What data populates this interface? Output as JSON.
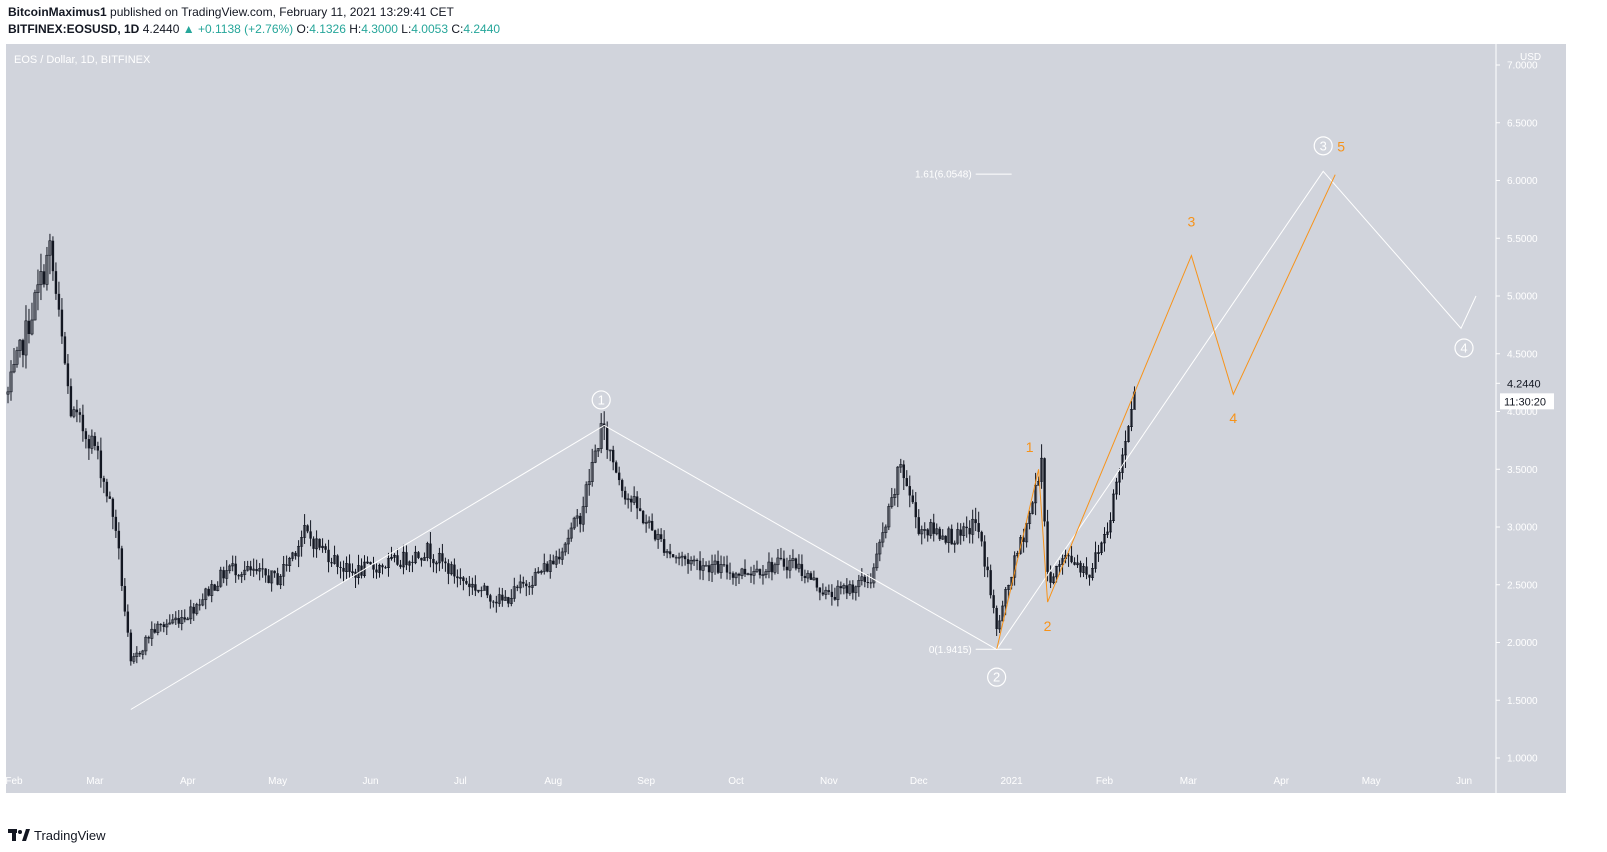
{
  "header": {
    "publisher": "BitcoinMaximus1",
    "published_text": "published on TradingView.com, February 11, 2021 13:29:41 CET",
    "symbol": "BITFINEX:EOSUSD, 1D",
    "last": "4.2440",
    "change": "+0.1138 (+2.76%)",
    "o_label": "O:",
    "o": "4.1326",
    "h_label": "H:",
    "h": "4.3000",
    "l_label": "L:",
    "l": "4.0053",
    "c_label": "C:",
    "c": "4.2440"
  },
  "chart_title": "EOS / Dollar, 1D, BITFINEX",
  "footer": {
    "brand": "TradingView"
  },
  "colors": {
    "plot_bg": "#d1d4dc",
    "candle": "#131722",
    "white_wave": "#ffffff",
    "orange_wave": "#f7931a",
    "axis_text": "#ffffff"
  },
  "price_axis": {
    "currency": "USD",
    "ticks": [
      "1.0000",
      "1.5000",
      "2.0000",
      "2.5000",
      "3.0000",
      "3.5000",
      "4.0000",
      "4.5000",
      "5.0000",
      "5.5000",
      "6.0000",
      "6.5000",
      "7.0000"
    ],
    "last_price_label": "4.2440",
    "countdown_label": "11:30:20"
  },
  "time_axis": {
    "ticks": [
      "Feb",
      "Mar",
      "Apr",
      "May",
      "Jun",
      "Jul",
      "Aug",
      "Sep",
      "Oct",
      "Nov",
      "Dec",
      "2021",
      "Feb",
      "Mar",
      "Apr",
      "May",
      "Jun"
    ]
  },
  "annotations": {
    "fib_top": "1.61(6.0548)",
    "fib_bottom": "0(1.9415)",
    "white_wave_labels": [
      "1",
      "2",
      "3",
      "4"
    ],
    "orange_wave_labels": [
      "1",
      "2",
      "3",
      "4",
      "5"
    ]
  },
  "chart_data": {
    "type": "candlestick",
    "title": "EOS / Dollar, 1D, BITFINEX",
    "ylabel": "USD",
    "ylim": [
      1.0,
      7.0
    ],
    "x_range": [
      "2020-02-01",
      "2021-06-05"
    ],
    "anchor_prices": [
      {
        "date": "2020-02-01",
        "price": 4.15
      },
      {
        "date": "2020-02-15",
        "price": 5.4
      },
      {
        "date": "2020-02-22",
        "price": 4.0
      },
      {
        "date": "2020-03-01",
        "price": 3.7
      },
      {
        "date": "2020-03-08",
        "price": 3.0
      },
      {
        "date": "2020-03-13",
        "price": 1.8
      },
      {
        "date": "2020-03-20",
        "price": 2.1
      },
      {
        "date": "2020-04-01",
        "price": 2.25
      },
      {
        "date": "2020-04-15",
        "price": 2.65
      },
      {
        "date": "2020-05-01",
        "price": 2.55
      },
      {
        "date": "2020-05-10",
        "price": 2.95
      },
      {
        "date": "2020-05-25",
        "price": 2.6
      },
      {
        "date": "2020-06-10",
        "price": 2.7
      },
      {
        "date": "2020-06-20",
        "price": 2.8
      },
      {
        "date": "2020-07-01",
        "price": 2.55
      },
      {
        "date": "2020-07-15",
        "price": 2.35
      },
      {
        "date": "2020-08-01",
        "price": 2.7
      },
      {
        "date": "2020-08-10",
        "price": 3.1
      },
      {
        "date": "2020-08-17",
        "price": 3.85
      },
      {
        "date": "2020-08-25",
        "price": 3.3
      },
      {
        "date": "2020-09-05",
        "price": 2.9
      },
      {
        "date": "2020-09-10",
        "price": 2.75
      },
      {
        "date": "2020-10-01",
        "price": 2.6
      },
      {
        "date": "2020-10-20",
        "price": 2.7
      },
      {
        "date": "2020-11-01",
        "price": 2.4
      },
      {
        "date": "2020-11-15",
        "price": 2.55
      },
      {
        "date": "2020-11-22",
        "price": 3.2
      },
      {
        "date": "2020-11-25",
        "price": 3.55
      },
      {
        "date": "2020-12-01",
        "price": 3.0
      },
      {
        "date": "2020-12-15",
        "price": 2.9
      },
      {
        "date": "2020-12-20",
        "price": 3.05
      },
      {
        "date": "2020-12-24",
        "price": 2.6
      },
      {
        "date": "2020-12-27",
        "price": 2.1
      },
      {
        "date": "2021-01-01",
        "price": 2.6
      },
      {
        "date": "2021-01-08",
        "price": 3.2
      },
      {
        "date": "2021-01-11",
        "price": 3.6
      },
      {
        "date": "2021-01-13",
        "price": 2.55
      },
      {
        "date": "2021-01-20",
        "price": 2.75
      },
      {
        "date": "2021-01-27",
        "price": 2.6
      },
      {
        "date": "2021-02-02",
        "price": 3.0
      },
      {
        "date": "2021-02-08",
        "price": 3.75
      },
      {
        "date": "2021-02-10",
        "price": 4.1
      },
      {
        "date": "2021-02-11",
        "price": 4.244
      }
    ],
    "white_wave": [
      {
        "date": "2020-03-13",
        "price": 1.42
      },
      {
        "date": "2020-08-18",
        "price": 3.88
      },
      {
        "date": "2020-12-27",
        "price": 1.94
      },
      {
        "date": "2021-04-15",
        "price": 6.08
      },
      {
        "date": "2021-05-31",
        "price": 4.72
      },
      {
        "date": "2021-06-05",
        "price": 5.0
      }
    ],
    "orange_wave": [
      {
        "date": "2020-12-27",
        "price": 1.94
      },
      {
        "date": "2021-01-10",
        "price": 3.5
      },
      {
        "date": "2021-01-13",
        "price": 2.35
      },
      {
        "date": "2021-03-02",
        "price": 5.35
      },
      {
        "date": "2021-03-16",
        "price": 4.15
      },
      {
        "date": "2021-04-19",
        "price": 6.05
      }
    ],
    "fib_levels": [
      {
        "label": "1.61(6.0548)",
        "price": 6.0548
      },
      {
        "label": "0(1.9415)",
        "price": 1.9415
      }
    ]
  }
}
